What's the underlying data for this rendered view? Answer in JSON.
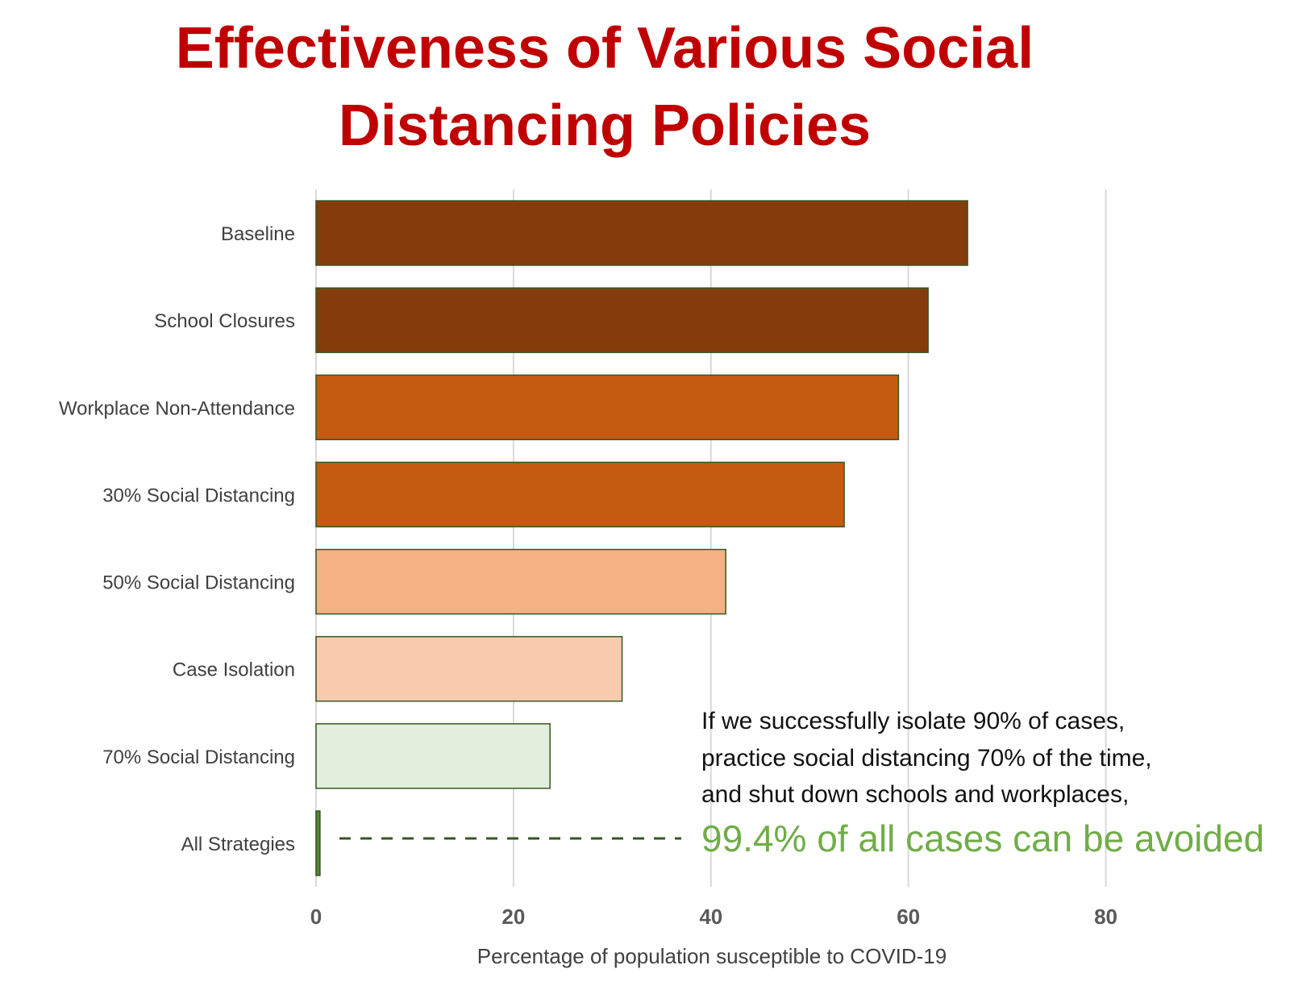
{
  "chart_data": {
    "type": "bar",
    "orientation": "horizontal",
    "title_lines": [
      "Effectiveness of Various Social",
      "Distancing Policies"
    ],
    "xlabel": "Percentage of population susceptible to COVID-19",
    "ylabel": "",
    "xlim": [
      0,
      90
    ],
    "xticks": [
      0,
      20,
      40,
      60,
      80
    ],
    "grid": "vertical",
    "categories": [
      "Baseline",
      "School Closures",
      "Workplace Non-Attendance",
      "30% Social Distancing",
      "50% Social Distancing",
      "Case Isolation",
      "70% Social Distancing",
      "All Strategies"
    ],
    "values": [
      66,
      62,
      59,
      53.5,
      41.5,
      31,
      23.7,
      0.4
    ],
    "colors": [
      "#843c0c",
      "#843c0c",
      "#c55a11",
      "#c55a11",
      "#f4b183",
      "#f8cbad",
      "#e2efda",
      "#548235"
    ],
    "bar_outline": "#375623",
    "annotation": {
      "lines": [
        "If we successfully isolate 90% of cases,",
        "practice social distancing 70% of the time,",
        "and shut down schools and workplaces,"
      ],
      "highlight": "99.4% of all cases can be avoided",
      "highlight_color": "#70ad47",
      "leader_color": "#375623"
    },
    "title_color": "#c00000"
  }
}
